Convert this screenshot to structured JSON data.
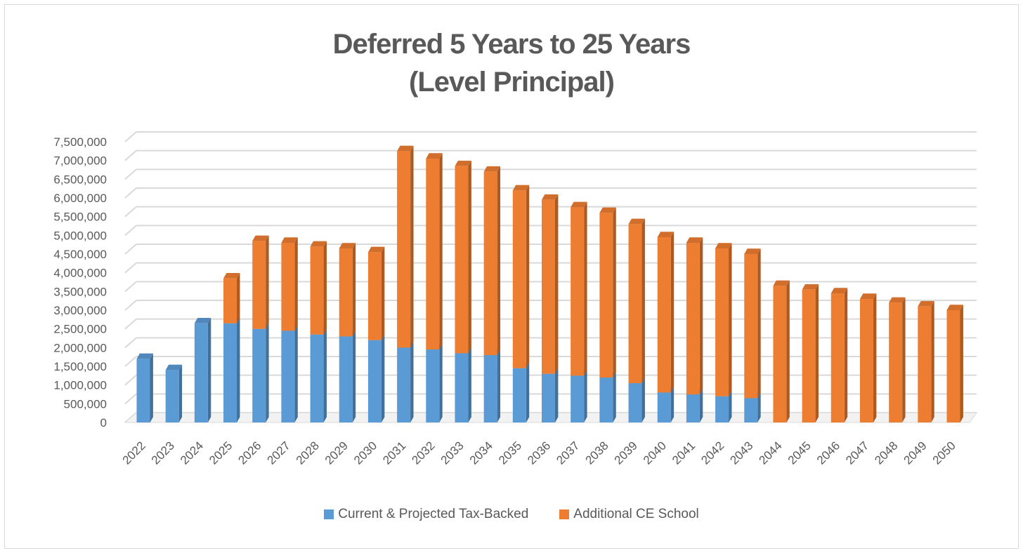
{
  "chart_data": {
    "type": "bar",
    "stacked": true,
    "title_line1": "Deferred 5 Years to 25 Years",
    "title_line2": "(Level Principal)",
    "categories": [
      "2022",
      "2023",
      "2024",
      "2025",
      "2026",
      "2027",
      "2028",
      "2029",
      "2030",
      "2031",
      "2032",
      "2033",
      "2034",
      "2035",
      "2036",
      "2037",
      "2038",
      "2039",
      "2040",
      "2041",
      "2042",
      "2043",
      "2044",
      "2045",
      "2046",
      "2047",
      "2048",
      "2049",
      "2050"
    ],
    "series": [
      {
        "name": "Current & Projected Tax-Backed",
        "color": "#5b9bd5",
        "values": [
          1700000,
          1400000,
          2650000,
          2650000,
          2500000,
          2450000,
          2350000,
          2300000,
          2200000,
          2000000,
          1950000,
          1850000,
          1800000,
          1450000,
          1300000,
          1250000,
          1200000,
          1050000,
          800000,
          750000,
          700000,
          650000,
          0,
          0,
          0,
          0,
          0,
          0,
          0
        ]
      },
      {
        "name": "Additional CE School",
        "color": "#ed7d31",
        "values": [
          0,
          0,
          0,
          1200000,
          2350000,
          2350000,
          2350000,
          2350000,
          2350000,
          5250000,
          5100000,
          5000000,
          4900000,
          4750000,
          4650000,
          4500000,
          4400000,
          4250000,
          4150000,
          4050000,
          3950000,
          3850000,
          3650000,
          3550000,
          3450000,
          3300000,
          3200000,
          3100000,
          3000000
        ]
      }
    ],
    "ylim": [
      0,
      7500000
    ],
    "y_ticks": [
      0,
      500000,
      1000000,
      1500000,
      2000000,
      2500000,
      3000000,
      3500000,
      4000000,
      4500000,
      5000000,
      5500000,
      6000000,
      6500000,
      7000000,
      7500000
    ],
    "y_tick_labels": [
      "0",
      "500,000",
      "1,000,000",
      "1,500,000",
      "2,000,000",
      "2,500,000",
      "3,000,000",
      "3,500,000",
      "4,000,000",
      "4,500,000",
      "5,000,000",
      "5,500,000",
      "6,000,000",
      "6,500,000",
      "7,000,000",
      "7,500,000"
    ],
    "grid": true,
    "legend_position": "bottom"
  }
}
